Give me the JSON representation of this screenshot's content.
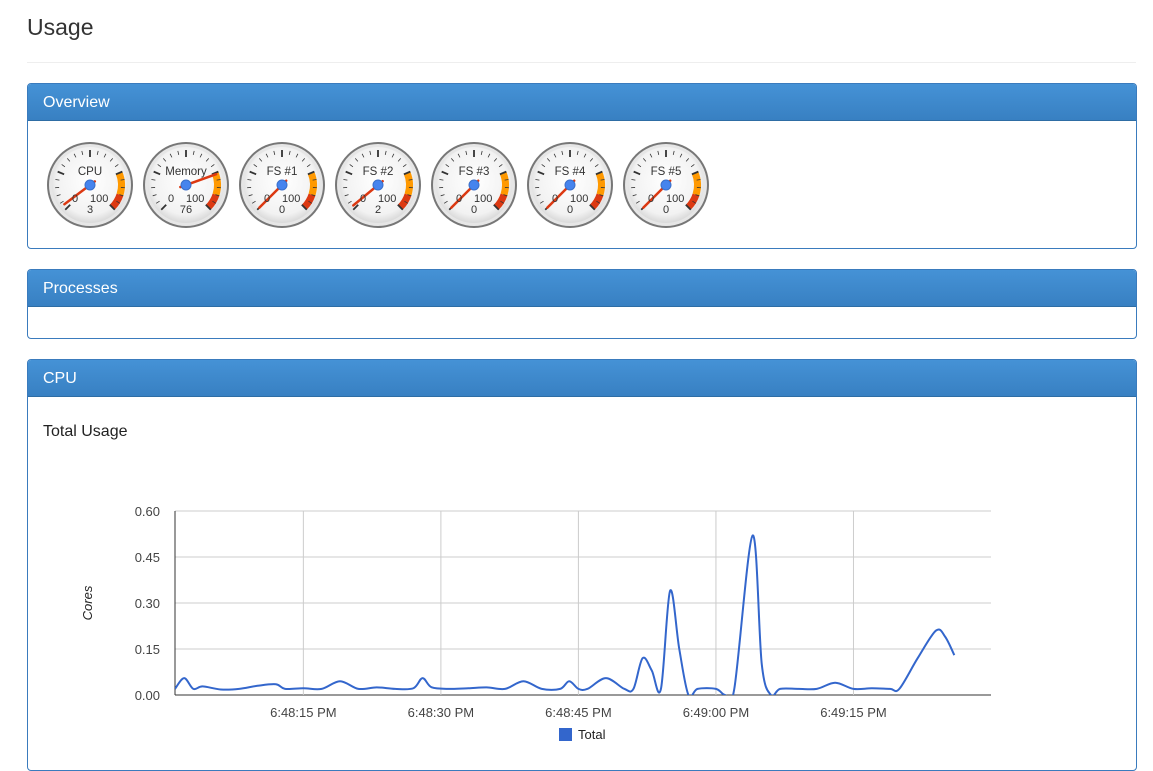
{
  "page": {
    "title": "Usage"
  },
  "overview": {
    "heading": "Overview",
    "gauges": [
      {
        "label": "CPU",
        "min": "0",
        "max": "100",
        "value": 3
      },
      {
        "label": "Memory",
        "min": "0",
        "max": "100",
        "value": 76
      },
      {
        "label": "FS #1",
        "min": "0",
        "max": "100",
        "value": 0
      },
      {
        "label": "FS #2",
        "min": "0",
        "max": "100",
        "value": 2
      },
      {
        "label": "FS #3",
        "min": "0",
        "max": "100",
        "value": 0
      },
      {
        "label": "FS #4",
        "min": "0",
        "max": "100",
        "value": 0
      },
      {
        "label": "FS #5",
        "min": "0",
        "max": "100",
        "value": 0
      }
    ]
  },
  "processes": {
    "heading": "Processes"
  },
  "cpu": {
    "heading": "CPU",
    "chart_title": "Total Usage"
  },
  "colors": {
    "panel_heading": "#3d88cb",
    "panel_border": "#3a7bbd",
    "series_total": "#3366cc",
    "gauge_yellow": "#ff9900",
    "gauge_red": "#dc3912",
    "needle": "#dc3912"
  },
  "chart_data": {
    "type": "line",
    "title": "Total Usage",
    "xlabel": "",
    "ylabel": "Cores",
    "ylim": [
      0,
      0.6
    ],
    "yticks": [
      "0.00",
      "0.15",
      "0.30",
      "0.45",
      "0.60"
    ],
    "xticks": [
      "6:48:15 PM",
      "6:48:30 PM",
      "6:48:45 PM",
      "6:49:00 PM",
      "6:49:15 PM"
    ],
    "xlim_seconds_after_6_48_00": [
      1,
      90
    ],
    "legend": "bottom",
    "grid": true,
    "series": [
      {
        "name": "Total",
        "points": [
          [
            1,
            0.02
          ],
          [
            2,
            0.055
          ],
          [
            3,
            0.02
          ],
          [
            4,
            0.028
          ],
          [
            6,
            0.018
          ],
          [
            8,
            0.02
          ],
          [
            10,
            0.03
          ],
          [
            12,
            0.035
          ],
          [
            13,
            0.02
          ],
          [
            15,
            0.022
          ],
          [
            17,
            0.02
          ],
          [
            19,
            0.045
          ],
          [
            21,
            0.02
          ],
          [
            23,
            0.025
          ],
          [
            25,
            0.02
          ],
          [
            27,
            0.022
          ],
          [
            28,
            0.055
          ],
          [
            29,
            0.025
          ],
          [
            31,
            0.02
          ],
          [
            33,
            0.022
          ],
          [
            35,
            0.025
          ],
          [
            37,
            0.02
          ],
          [
            39,
            0.045
          ],
          [
            41,
            0.02
          ],
          [
            43,
            0.02
          ],
          [
            44,
            0.045
          ],
          [
            45,
            0.02
          ],
          [
            46,
            0.02
          ],
          [
            48,
            0.055
          ],
          [
            50,
            0.02
          ],
          [
            51,
            0.02
          ],
          [
            52,
            0.12
          ],
          [
            53,
            0.08
          ],
          [
            54,
            0.02
          ],
          [
            55,
            0.34
          ],
          [
            56,
            0.15
          ],
          [
            57,
            0.0
          ],
          [
            58,
            0.02
          ],
          [
            60,
            0.02
          ],
          [
            61,
            0.0
          ],
          [
            62,
            0.02
          ],
          [
            64,
            0.52
          ],
          [
            65,
            0.1
          ],
          [
            66,
            0.0
          ],
          [
            67,
            0.02
          ],
          [
            69,
            0.02
          ],
          [
            71,
            0.02
          ],
          [
            73,
            0.04
          ],
          [
            75,
            0.02
          ],
          [
            77,
            0.022
          ],
          [
            79,
            0.02
          ],
          [
            80,
            0.02
          ],
          [
            82,
            0.12
          ],
          [
            84,
            0.21
          ],
          [
            85,
            0.19
          ],
          [
            86,
            0.13
          ]
        ]
      }
    ]
  }
}
